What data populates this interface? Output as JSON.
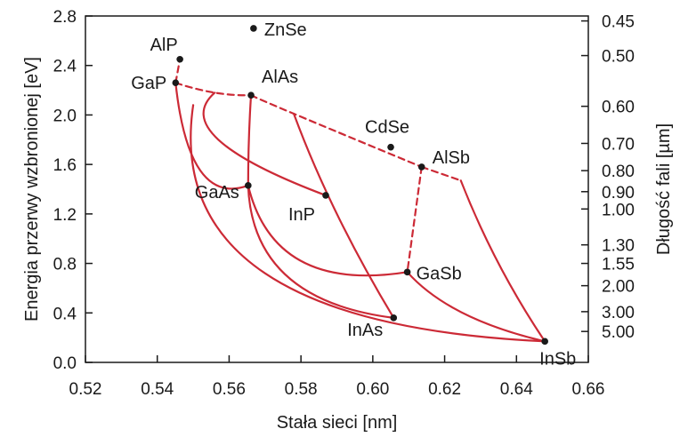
{
  "chart_data": {
    "type": "scatter",
    "xlabel": "Stała sieci [nm]",
    "ylabel": "Energia przerwy wzbronionej [eV]",
    "y2label": "Długość fali [µm]",
    "xlim": [
      0.52,
      0.66
    ],
    "ylim": [
      0.0,
      2.8
    ],
    "x_ticks": [
      "0.52",
      "0.54",
      "0.56",
      "0.58",
      "0.60",
      "0.62",
      "0.64",
      "0.66"
    ],
    "y_ticks": [
      "0.0",
      "0.4",
      "0.8",
      "1.2",
      "1.6",
      "2.0",
      "2.4",
      "2.8"
    ],
    "y2_ticks": [
      {
        "label": "0.45",
        "energy": 2.76
      },
      {
        "label": "0.50",
        "energy": 2.48
      },
      {
        "label": "0.60",
        "energy": 2.07
      },
      {
        "label": "0.70",
        "energy": 1.77
      },
      {
        "label": "0.80",
        "energy": 1.55
      },
      {
        "label": "0.90",
        "energy": 1.38
      },
      {
        "label": "1.00",
        "energy": 1.24
      },
      {
        "label": "1.30",
        "energy": 0.95
      },
      {
        "label": "1.55",
        "energy": 0.8
      },
      {
        "label": "2.00",
        "energy": 0.62
      },
      {
        "label": "3.00",
        "energy": 0.41
      },
      {
        "label": "5.00",
        "energy": 0.25
      }
    ],
    "points": [
      {
        "name": "ZnSe",
        "x": 0.5668,
        "y": 2.7
      },
      {
        "name": "AlP",
        "x": 0.5463,
        "y": 2.45
      },
      {
        "name": "GaP",
        "x": 0.5451,
        "y": 2.26
      },
      {
        "name": "AlAs",
        "x": 0.5661,
        "y": 2.16
      },
      {
        "name": "CdSe",
        "x": 0.605,
        "y": 1.74
      },
      {
        "name": "AlSb",
        "x": 0.6136,
        "y": 1.58
      },
      {
        "name": "GaAs",
        "x": 0.5653,
        "y": 1.43
      },
      {
        "name": "InP",
        "x": 0.5869,
        "y": 1.35
      },
      {
        "name": "GaSb",
        "x": 0.6096,
        "y": 0.73
      },
      {
        "name": "InAs",
        "x": 0.6058,
        "y": 0.36
      },
      {
        "name": "InSb",
        "x": 0.6479,
        "y": 0.17
      }
    ],
    "curves": [
      {
        "style": "dashed",
        "points": [
          [
            0.5451,
            2.26
          ],
          [
            0.5463,
            2.45
          ]
        ]
      },
      {
        "style": "dashed",
        "points": [
          [
            0.5451,
            2.26
          ],
          [
            0.556,
            2.18
          ],
          [
            0.5661,
            2.16
          ]
        ]
      },
      {
        "style": "dashed",
        "points": [
          [
            0.5661,
            2.16
          ],
          [
            0.578,
            2.01
          ],
          [
            0.6136,
            1.58
          ]
        ]
      },
      {
        "style": "dashed",
        "points": [
          [
            0.6136,
            1.58
          ],
          [
            0.6245,
            1.47
          ]
        ]
      },
      {
        "style": "dashed",
        "points": [
          [
            0.6136,
            1.58
          ],
          [
            0.6096,
            0.73
          ]
        ]
      },
      {
        "style": "solid",
        "points": [
          [
            0.5661,
            2.16
          ],
          [
            0.5655,
            1.8
          ],
          [
            0.5653,
            1.43
          ]
        ]
      },
      {
        "style": "solid",
        "points": [
          [
            0.5451,
            2.26
          ],
          [
            0.552,
            1.55
          ],
          [
            0.5653,
            1.43
          ]
        ]
      },
      {
        "style": "solid",
        "points": [
          [
            0.556,
            2.18
          ],
          [
            0.557,
            1.8
          ],
          [
            0.5869,
            1.35
          ]
        ]
      },
      {
        "style": "solid",
        "points": [
          [
            0.55,
            2.08
          ],
          [
            0.57,
            0.72
          ],
          [
            0.6479,
            0.17
          ]
        ]
      },
      {
        "style": "solid",
        "points": [
          [
            0.5653,
            1.43
          ],
          [
            0.58,
            0.82
          ],
          [
            0.6096,
            0.73
          ]
        ]
      },
      {
        "style": "solid",
        "points": [
          [
            0.578,
            2.01
          ],
          [
            0.59,
            1.2
          ],
          [
            0.6058,
            0.36
          ]
        ]
      },
      {
        "style": "solid",
        "points": [
          [
            0.5653,
            1.43
          ],
          [
            0.576,
            0.7
          ],
          [
            0.6058,
            0.36
          ]
        ]
      },
      {
        "style": "solid",
        "points": [
          [
            0.6096,
            0.73
          ],
          [
            0.625,
            0.4
          ],
          [
            0.6479,
            0.17
          ]
        ]
      },
      {
        "style": "solid",
        "points": [
          [
            0.6245,
            1.47
          ],
          [
            0.635,
            0.8
          ],
          [
            0.6479,
            0.17
          ]
        ]
      }
    ],
    "colors": {
      "curve": "#cc2a36",
      "point": "#1a1a1a",
      "axis": "#1a1a1a"
    },
    "grid": false,
    "legend": "none"
  }
}
